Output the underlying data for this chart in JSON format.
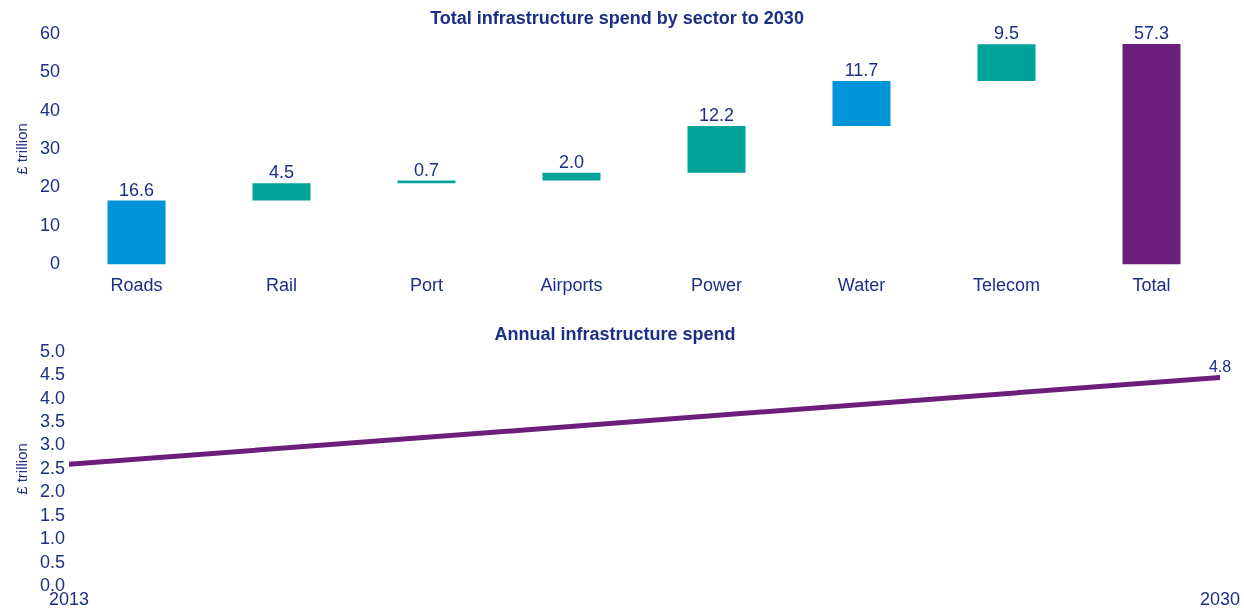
{
  "chart_data": [
    {
      "type": "bar",
      "title": "Total infrastructure spend by sector to 2030",
      "ylabel": "£ trillion",
      "categories": [
        "Roads",
        "Rail",
        "Port",
        "Airports",
        "Power",
        "Water",
        "Telecom",
        "Total"
      ],
      "values": [
        16.6,
        4.5,
        0.7,
        2.0,
        12.2,
        11.7,
        9.5,
        57.3
      ],
      "base": [
        0,
        16.6,
        21.1,
        21.8,
        23.8,
        36.0,
        47.7,
        0
      ],
      "colors": [
        "#0094d9",
        "#00a39a",
        "#00a39a",
        "#00a39a",
        "#00a39a",
        "#0094d9",
        "#00a39a",
        "#6b1f7b"
      ],
      "value_labels": [
        "16.6",
        "4.5",
        "0.7",
        "2.0",
        "12.2",
        "11.7",
        "9.5",
        "57.3"
      ],
      "ylim": [
        0,
        60
      ],
      "yticks": [
        0,
        10,
        20,
        30,
        40,
        50,
        60
      ],
      "grid": false,
      "legend": false
    },
    {
      "type": "line",
      "title": "Annual infrastructure spend",
      "ylabel": "£ trillion",
      "x": [
        2013,
        2030
      ],
      "series": [
        {
          "color": "#6b1f7b",
          "values": [
            2.6,
            4.45
          ]
        }
      ],
      "xlim": [
        2013,
        2030
      ],
      "xticks": [
        2013,
        2030
      ],
      "ylim": [
        0,
        5
      ],
      "yticks": [
        {
          "value": 0,
          "label": "0.0"
        },
        0.5,
        {
          "value": 1,
          "label": "1.0"
        },
        1.5,
        {
          "value": 2,
          "label": "2.0"
        },
        2.5,
        {
          "value": 3,
          "label": "3.0"
        },
        3.5,
        {
          "value": 4,
          "label": "4.0"
        },
        4.5,
        {
          "value": 5,
          "label": "5.0"
        }
      ],
      "annotations": [
        {
          "text": "4.8",
          "x": 2030,
          "y": 4.45
        }
      ],
      "grid": false,
      "legend": false,
      "marker": "none",
      "line_style": "solid"
    }
  ]
}
